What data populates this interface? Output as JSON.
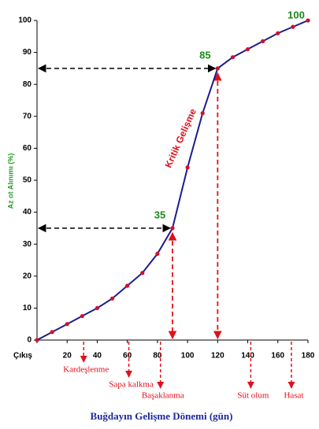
{
  "chart_data": {
    "type": "line",
    "title": "Buğdayın Gelişme Dönemi (gün)",
    "y_label": "Az ot Alınımı (%)",
    "annotation": "Kritik Gelişme",
    "xlim": [
      0,
      180
    ],
    "ylim": [
      0,
      100
    ],
    "xticks": [
      {
        "value": 0,
        "label": "Çıkış"
      },
      20,
      40,
      60,
      80,
      100,
      120,
      140,
      160,
      180
    ],
    "yticks": [
      0,
      10,
      20,
      30,
      40,
      50,
      60,
      70,
      80,
      90,
      100
    ],
    "grid": false,
    "series": [
      {
        "color": "#1c1c8c",
        "marker_color": "#d0102a",
        "x": [
          0,
          10,
          20,
          30,
          40,
          50,
          60,
          70,
          80,
          90,
          100,
          110,
          120,
          130,
          140,
          150,
          160,
          170,
          180
        ],
        "values": [
          0,
          2.5,
          5,
          7.5,
          10,
          13,
          17,
          21,
          27,
          35,
          54,
          71,
          85,
          88.5,
          91,
          93.5,
          96,
          98,
          100
        ],
        "value_labels": [
          null,
          null,
          null,
          null,
          null,
          null,
          null,
          null,
          null,
          "35",
          null,
          null,
          "85",
          null,
          null,
          null,
          null,
          null,
          "100"
        ]
      }
    ],
    "stages": [
      {
        "label": "Kardeşlenme",
        "x": 31
      },
      {
        "label": "Sapa kalkma",
        "x": 61
      },
      {
        "label": "Başaklanma",
        "x": 82
      },
      {
        "label": "Süt olum",
        "x": 142
      },
      {
        "label": "Hasat",
        "x": 169
      }
    ]
  }
}
